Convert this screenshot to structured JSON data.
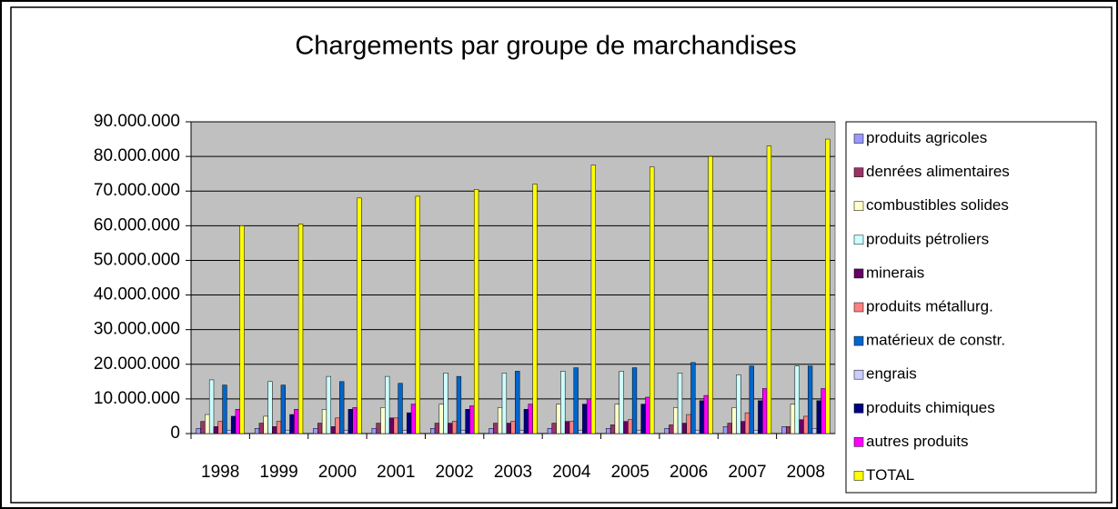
{
  "chart_data": {
    "type": "bar",
    "title": "Chargements par groupe de marchandises",
    "categories": [
      "1998",
      "1999",
      "2000",
      "2001",
      "2002",
      "2003",
      "2004",
      "2005",
      "2006",
      "2007",
      "2008"
    ],
    "series": [
      {
        "name": "produits agricoles",
        "color": "#9999ff",
        "values": [
          1500000,
          1500000,
          1500000,
          1500000,
          1500000,
          1500000,
          1500000,
          1500000,
          1500000,
          2000000,
          2000000
        ]
      },
      {
        "name": "denrées alimentaires",
        "color": "#993366",
        "values": [
          3500000,
          3000000,
          3000000,
          3000000,
          3000000,
          3000000,
          3000000,
          2500000,
          2500000,
          3000000,
          2000000
        ]
      },
      {
        "name": "combustibles solides",
        "color": "#ffffcc",
        "values": [
          5500000,
          5000000,
          7000000,
          7500000,
          8500000,
          7500000,
          8500000,
          8500000,
          7500000,
          7500000,
          8500000
        ]
      },
      {
        "name": "produits pétroliers",
        "color": "#ccffff",
        "values": [
          15500000,
          15000000,
          16500000,
          16500000,
          17500000,
          17500000,
          18000000,
          18000000,
          17500000,
          17000000,
          19500000
        ]
      },
      {
        "name": "minerais",
        "color": "#660066",
        "values": [
          2000000,
          2000000,
          2000000,
          4500000,
          3000000,
          3000000,
          3500000,
          3500000,
          3000000,
          3500000,
          4000000
        ]
      },
      {
        "name": "produits métallurg.",
        "color": "#ff8080",
        "values": [
          3500000,
          3500000,
          4500000,
          4500000,
          3500000,
          3500000,
          3500000,
          4000000,
          5500000,
          6000000,
          5000000
        ]
      },
      {
        "name": "matérieux de constr.",
        "color": "#0066cc",
        "values": [
          14000000,
          14000000,
          15000000,
          14500000,
          16500000,
          18000000,
          19000000,
          19000000,
          20500000,
          19500000,
          19500000
        ]
      },
      {
        "name": "engrais",
        "color": "#ccccff",
        "values": [
          1000000,
          1000000,
          1000000,
          1000000,
          1000000,
          1000000,
          1000000,
          1000000,
          1000000,
          1000000,
          1500000
        ]
      },
      {
        "name": "produits chimiques",
        "color": "#000080",
        "values": [
          5000000,
          5500000,
          7000000,
          6000000,
          7000000,
          7000000,
          8500000,
          8500000,
          9500000,
          9500000,
          9500000
        ]
      },
      {
        "name": "autres produits",
        "color": "#ff00ff",
        "values": [
          7000000,
          7000000,
          7500000,
          8500000,
          8000000,
          8500000,
          10000000,
          10500000,
          11000000,
          13000000,
          13000000
        ]
      },
      {
        "name": "TOTAL",
        "color": "#ffff00",
        "values": [
          60000000,
          60500000,
          68000000,
          68500000,
          70500000,
          72000000,
          77500000,
          77000000,
          80000000,
          83000000,
          85000000
        ]
      }
    ],
    "ylim": [
      0,
      90000000
    ],
    "yticks": [
      0,
      {
        "value": 10000000,
        "label": "10.000.000"
      },
      {
        "value": 20000000,
        "label": "20.000.000"
      },
      {
        "value": 30000000,
        "label": "30.000.000"
      },
      {
        "value": 40000000,
        "label": "40.000.000"
      },
      {
        "value": 50000000,
        "label": "50.000.000"
      },
      {
        "value": 60000000,
        "label": "60.000.000"
      },
      {
        "value": 70000000,
        "label": "70.000.000"
      },
      {
        "value": 80000000,
        "label": "80.000.000"
      },
      {
        "value": 90000000,
        "label": "90.000.000"
      }
    ],
    "grid": true,
    "legend": "right"
  }
}
